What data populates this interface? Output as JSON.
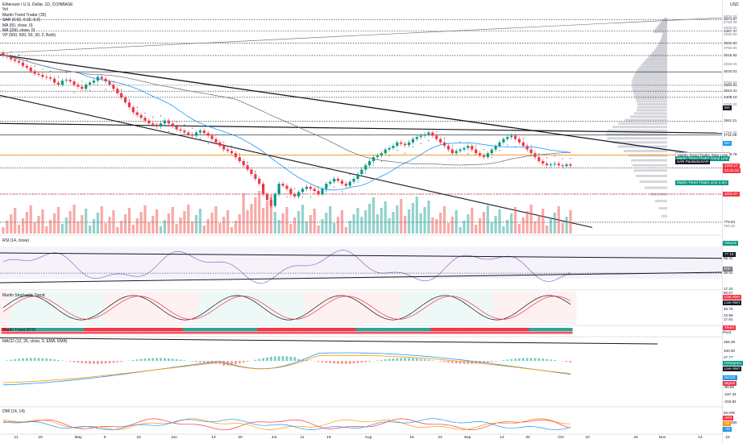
{
  "title": "Ethereum / U.S. Dollar, 1D, COINBASE",
  "currency": "USD",
  "legend": [
    "Vol",
    "Martin Trend Trader (35)",
    "SAR (0.02, 0.02, 0.2)",
    "MA (50, close, 0)",
    "MA (200, close, 0)",
    "VP (500, 500, 50, 30, 2, Both)"
  ],
  "price_axis": {
    "labels": [
      {
        "text": "5000.00",
        "y": 5000
      },
      {
        "text": "4750.00",
        "y": 4750
      },
      {
        "text": "4500.00",
        "y": 4500
      },
      {
        "text": "4250.00",
        "y": 4250
      },
      {
        "text": "3750.00",
        "y": 3750
      },
      {
        "text": "3250.00",
        "y": 3250
      },
      {
        "text": "2750.00",
        "y": 2750
      },
      {
        "text": "2250.00",
        "y": 2250
      },
      {
        "text": "1750.00",
        "y": 1750
      },
      {
        "text": "1250.00",
        "y": 1250
      },
      {
        "text": "750.00",
        "y": 750
      }
    ],
    "levels": [
      {
        "text": "4874.97",
        "y": 4874.97,
        "style": "dotted"
      },
      {
        "text": "4387.37",
        "y": 4387.37,
        "style": "dotted"
      },
      {
        "text": "3932.83",
        "y": 3932.83,
        "style": "dotted"
      },
      {
        "text": "3515.82",
        "y": 3515.82,
        "style": "dotted"
      },
      {
        "text": "3032.01",
        "y": 3032.01,
        "style": "solid"
      },
      {
        "text": "2684.91",
        "y": 2684.91,
        "style": "dotted"
      },
      {
        "text": "2544.41",
        "y": 2544.41,
        "style": "dotted"
      },
      {
        "text": "2408.10",
        "y": 2408.1,
        "style": "dotted"
      },
      {
        "text": "1941.11",
        "y": 1941.11,
        "style": "dotted"
      },
      {
        "text": "1711.06",
        "y": 1711.06,
        "style": "solid"
      },
      {
        "text": "1426.78",
        "y": 1426.78,
        "style": "dotted"
      },
      {
        "text": "1269.54",
        "y": 1269.54,
        "style": "dotted"
      },
      {
        "text": "1001.07",
        "y": 1001.07,
        "style": "dotted"
      },
      {
        "text": "775.83",
        "y": 775.83,
        "style": "dotted"
      }
    ],
    "tags": [
      {
        "text": "MA",
        "y": 2180,
        "color": "#131722"
      },
      {
        "text": "MA",
        "y": 1580,
        "color": "#2196f3"
      },
      {
        "text": "1293.17",
        "y": 1293.17,
        "color": "#f23645"
      },
      {
        "text": "23:31:16",
        "y": 1240,
        "color": "#f23645"
      },
      {
        "text": "1001.07",
        "y": 1001.07,
        "color": "#f23645"
      },
      {
        "text": "Volume",
        "y": 640,
        "color": "#089981"
      },
      {
        "text": "77.15",
        "y": 580,
        "color": "#131722"
      }
    ],
    "line_tags": [
      {
        "text": "Martin Trend Trader Stop Loss",
        "y": 1426.78,
        "color": "#ffffff",
        "text_color": "#131722"
      },
      {
        "text": "Martin Trend Trader Trend Line",
        "y": 1380,
        "color": "#089981",
        "text_color": "#ffffff"
      },
      {
        "text": "SAR ParabolicSAR",
        "y": 1345,
        "color": "#131722",
        "text_color": "#ffffff"
      },
      {
        "text": "Martin Trend Trader Line 4 am",
        "y": 1110,
        "color": "#089981",
        "text_color": "#ffffff"
      }
    ]
  },
  "rsi": {
    "title": "RSI (14, close)",
    "labels": [
      {
        "text": "55.31",
        "y": 55.31,
        "style": "solid"
      },
      {
        "text": "40.00",
        "y": 40,
        "style": "none"
      },
      {
        "text": "36.91",
        "y": 36.91,
        "style": "dotted"
      }
    ],
    "tag": "RSI"
  },
  "stoch": {
    "title": "Martin Stochastic Trend",
    "labels": [
      {
        "text": "17.42",
        "y": 17.42
      },
      {
        "text": "80.57",
        "y": 80.57
      },
      {
        "text": "80.00",
        "y": 80
      },
      {
        "text": "46.76",
        "y": 46.76
      },
      {
        "text": "22.98",
        "y": 22.98
      },
      {
        "text": "17.81",
        "y": 17.81
      }
    ],
    "tags": [
      {
        "text": "Live Alert",
        "color": "#f23645"
      },
      {
        "text": "Live Alert",
        "color": "#131722"
      }
    ]
  },
  "mtm": {
    "title": "Martin Trend MTM",
    "tag": "Trend",
    "sub": "Pivot"
  },
  "macd": {
    "title": "MACD (12, 26, close, 9, EMA, EMA)",
    "labels": [
      {
        "text": "155.46",
        "y": 155.46
      },
      {
        "text": "100.00",
        "y": 100
      },
      {
        "text": "27.77",
        "y": 27.77
      },
      {
        "text": "0.00",
        "y": 0
      },
      {
        "text": "-46.46",
        "y": -46.46
      },
      {
        "text": "-100.00",
        "y": -100
      },
      {
        "text": "-90.80",
        "y": -90.8
      },
      {
        "text": "-197.34",
        "y": -197.34
      },
      {
        "text": "-318.82",
        "y": -318.82
      }
    ],
    "tags": [
      {
        "text": "Histogram",
        "color": "#089981"
      },
      {
        "text": "Live Alert",
        "color": "#131722"
      },
      {
        "text": "MACD",
        "color": "#2196f3"
      },
      {
        "text": "Signal",
        "color": "#f23645"
      }
    ]
  },
  "dmi": {
    "title": "DMI (14, 14)",
    "labels": [
      {
        "text": "50.000",
        "y": 50
      },
      {
        "text": "25.0000",
        "y": 25
      }
    ],
    "tags": [
      {
        "text": "ADX",
        "color": "#f23645"
      },
      {
        "text": "-DI",
        "color": "#ff9800"
      },
      {
        "text": "+DI",
        "color": "#2196f3"
      }
    ]
  },
  "time_axis": [
    "11",
    "19",
    "May",
    "9",
    "23",
    "Jun",
    "13",
    "20",
    "Jul",
    "11",
    "19",
    "Aug",
    "15",
    "23",
    "Sep",
    "12",
    "20",
    "Oct",
    "10",
    "24",
    "Nov",
    "14",
    "22"
  ],
  "chart_data": {
    "type": "candlestick",
    "title": "Ethereum / U.S. Dollar, 1D, COINBASE",
    "ylim": [
      750,
      5000
    ],
    "close": [
      3520,
      3480,
      3400,
      3350,
      3300,
      3200,
      3150,
      3050,
      2980,
      2950,
      2900,
      2880,
      2850,
      2750,
      2700,
      2800,
      2820,
      2780,
      2700,
      2650,
      2600,
      2700,
      2750,
      2800,
      2900,
      2850,
      2780,
      2700,
      2600,
      2500,
      2400,
      2300,
      2200,
      2100,
      2050,
      2000,
      1950,
      1900,
      1880,
      1850,
      1900,
      1950,
      1900,
      1850,
      1800,
      1780,
      1750,
      1720,
      1700,
      1750,
      1780,
      1740,
      1700,
      1650,
      1600,
      1550,
      1500,
      1480,
      1450,
      1400,
      1350,
      1300,
      1250,
      1200,
      1150,
      1100,
      1000,
      950,
      900,
      1000,
      1100,
      1080,
      1050,
      1000,
      980,
      1020,
      1050,
      1070,
      1050,
      1030,
      1000,
      1050,
      1100,
      1120,
      1150,
      1130,
      1100,
      1080,
      1120,
      1150,
      1200,
      1250,
      1300,
      1350,
      1400,
      1420,
      1450,
      1500,
      1520,
      1550,
      1600,
      1580,
      1560,
      1600,
      1650,
      1680,
      1700,
      1720,
      1750,
      1700,
      1650,
      1600,
      1550,
      1500,
      1450,
      1480,
      1500,
      1520,
      1550,
      1500,
      1450,
      1420,
      1400,
      1450,
      1500,
      1550,
      1600,
      1650,
      1680,
      1700,
      1650,
      1600,
      1550,
      1500,
      1450,
      1400,
      1350,
      1320,
      1300,
      1310,
      1320,
      1300,
      1290,
      1310,
      1293
    ]
  }
}
